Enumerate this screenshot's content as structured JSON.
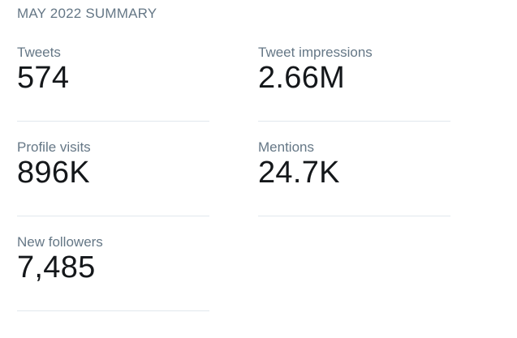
{
  "summary": {
    "title": "MAY 2022 SUMMARY"
  },
  "metrics": {
    "tweets": {
      "label": "Tweets",
      "value": "574"
    },
    "impressions": {
      "label": "Tweet impressions",
      "value": "2.66M"
    },
    "profile_visits": {
      "label": "Profile visits",
      "value": "896K"
    },
    "mentions": {
      "label": "Mentions",
      "value": "24.7K"
    },
    "new_followers": {
      "label": "New followers",
      "value": "7,485"
    }
  },
  "colors": {
    "label": "#657786",
    "value": "#14171a",
    "divider": "#e1e8ed",
    "background": "#ffffff"
  }
}
